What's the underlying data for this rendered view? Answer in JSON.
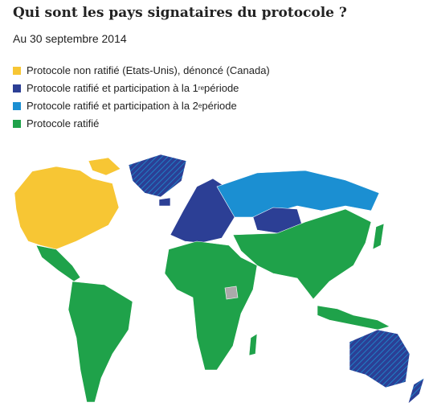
{
  "header": {
    "title": "Qui sont les pays signataires du protocole ?",
    "subtitle": "Au 30 septembre 2014"
  },
  "legend": {
    "items": [
      {
        "color": "#f7c634",
        "parts": [
          "Protocole non ratifié (Etats-Unis), dénoncé (Canada)"
        ]
      },
      {
        "color": "#2c3f95",
        "parts": [
          "Protocole ratifié et participation à la 1",
          "re",
          " période"
        ]
      },
      {
        "color": "#1b8fd2",
        "parts": [
          "Protocole ratifié et participation à la 2",
          "e",
          " période"
        ]
      },
      {
        "color": "#1fa24a",
        "parts": [
          "Protocole ratifié"
        ]
      }
    ]
  }
}
